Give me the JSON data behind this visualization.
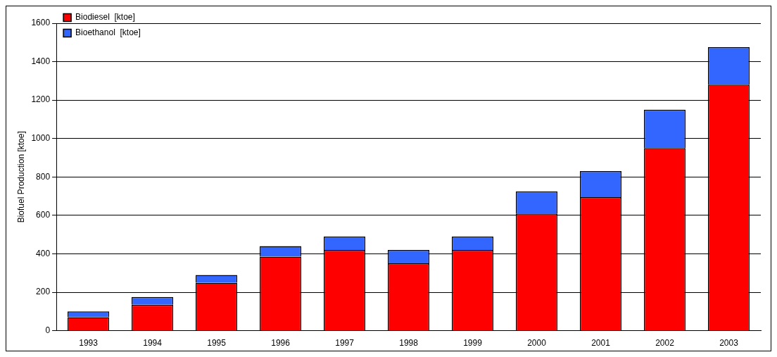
{
  "chart_data": {
    "type": "bar",
    "ylabel": "Biofuel Production [ktoe]",
    "categories": [
      "1993",
      "1994",
      "1995",
      "1996",
      "1997",
      "1998",
      "1999",
      "2000",
      "2001",
      "2002",
      "2003"
    ],
    "stacked": true,
    "series": [
      {
        "name": "Biodiesel  [ktoe]",
        "color": "#ff0000",
        "values": [
          70,
          135,
          250,
          385,
          420,
          350,
          420,
          610,
          695,
          950,
          1280
        ]
      },
      {
        "name": "Bioethanol  [ktoe]",
        "color": "#3366ff",
        "values": [
          30,
          40,
          40,
          55,
          70,
          70,
          70,
          115,
          135,
          200,
          195
        ]
      }
    ],
    "ylim": [
      0,
      1600
    ],
    "yticks": [
      0,
      200,
      400,
      600,
      800,
      1000,
      1200,
      1400,
      1600
    ],
    "grid": "y",
    "legend": "top left"
  }
}
